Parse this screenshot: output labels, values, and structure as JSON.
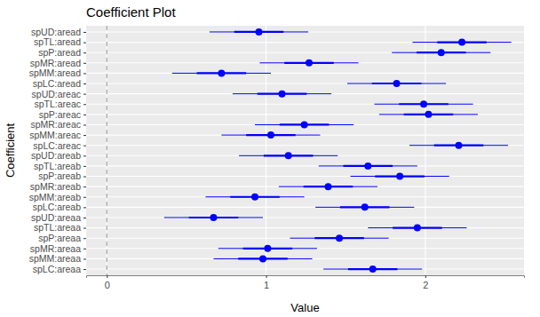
{
  "chart_data": {
    "type": "coefficient",
    "title": "Coefficient Plot",
    "x_label": "Value",
    "y_label": "Coefficient",
    "orientation": "horizontal",
    "grid": true,
    "color": "#0000ff",
    "categories": [
      "spUD:aread",
      "spTL:aread",
      "spP:aread",
      "spMR:aread",
      "spMM:aread",
      "spLC:aread",
      "spUD:areac",
      "spTL:areac",
      "spP:areac",
      "spMR:areac",
      "spMM:areac",
      "spLC:areac",
      "spUD:areab",
      "spTL:areab",
      "spP:areab",
      "spMR:areab",
      "spMM:areab",
      "spLC:areab",
      "spUD:areaa",
      "spTL:areaa",
      "spP:areaa",
      "spMR:areaa",
      "spMM:areaa",
      "spLC:areaa"
    ],
    "values": [
      0.955,
      2.23,
      2.1,
      1.27,
      0.72,
      1.82,
      1.1,
      1.99,
      2.02,
      1.24,
      1.03,
      2.21,
      1.14,
      1.64,
      1.84,
      1.39,
      0.93,
      1.62,
      0.67,
      1.95,
      1.46,
      1.01,
      0.98,
      1.67
    ],
    "error": [
      0.31,
      0.31,
      0.31,
      0.31,
      0.31,
      0.31,
      0.31,
      0.31,
      0.31,
      0.31,
      0.31,
      0.31,
      0.31,
      0.31,
      0.31,
      0.31,
      0.31,
      0.31,
      0.31,
      0.31,
      0.31,
      0.31,
      0.31,
      0.31
    ],
    "inner_error": [
      0.155,
      0.155,
      0.155,
      0.155,
      0.155,
      0.155,
      0.155,
      0.155,
      0.155,
      0.155,
      0.155,
      0.155,
      0.155,
      0.155,
      0.155,
      0.155,
      0.155,
      0.155,
      0.155,
      0.155,
      0.155,
      0.155,
      0.155,
      0.155
    ],
    "vline": 0,
    "xlim": [
      -0.13,
      2.62
    ],
    "xticks": [
      0,
      1,
      2
    ]
  }
}
